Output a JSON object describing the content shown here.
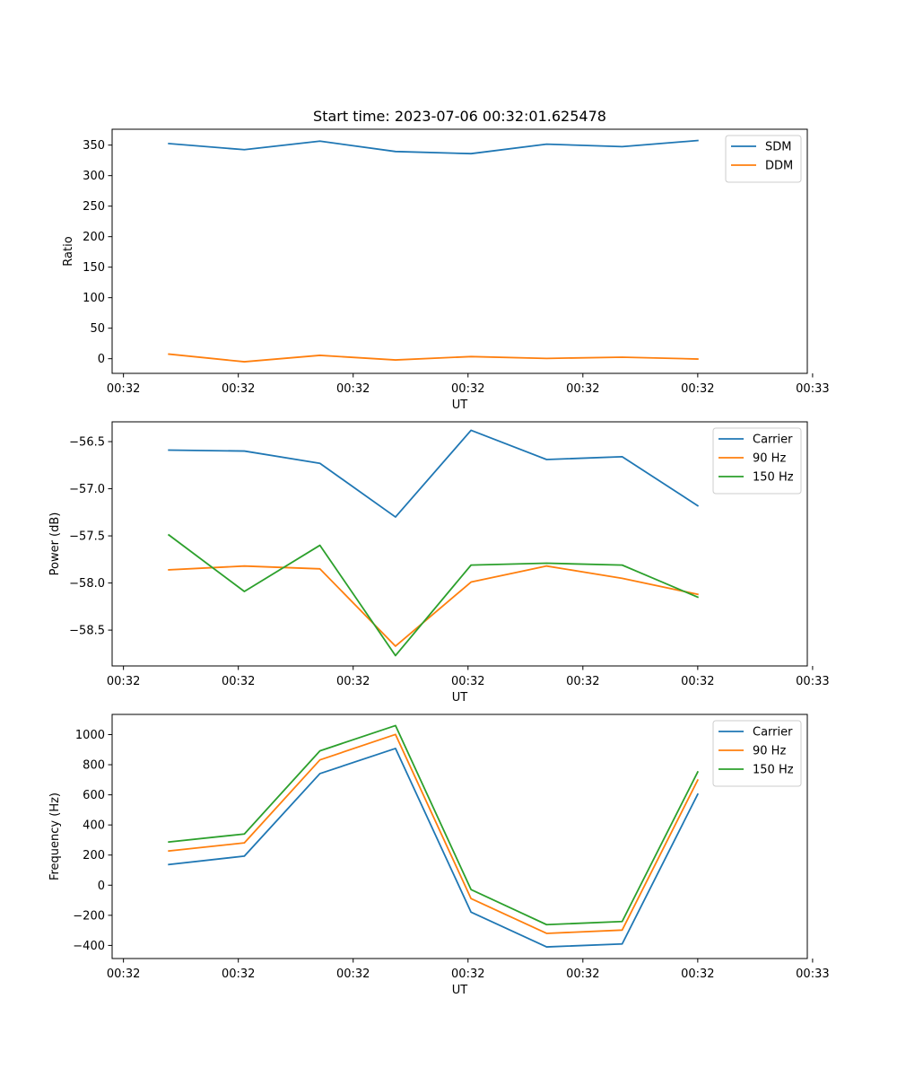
{
  "chart_data": [
    {
      "type": "line",
      "title": "Start time: 2023-07-06 00:32:01.625478",
      "xlabel": "UT",
      "ylabel": "Ratio",
      "x": [
        0,
        1,
        2,
        3,
        4,
        5,
        6,
        7
      ],
      "xlim": [
        -0.75,
        8.45
      ],
      "xticks": [
        -0.6,
        0.92,
        2.44,
        3.96,
        5.48,
        7.0,
        8.52
      ],
      "xtick_labels": [
        "00:32",
        "00:32",
        "00:32",
        "00:32",
        "00:32",
        "00:32",
        "00:33"
      ],
      "ylim": [
        -24,
        376
      ],
      "yticks": [
        0,
        50,
        100,
        150,
        200,
        250,
        300,
        350
      ],
      "ytick_labels": [
        "0",
        "50",
        "100",
        "150",
        "200",
        "250",
        "300",
        "350"
      ],
      "grid": false,
      "legend": "top-right",
      "series": [
        {
          "name": "SDM",
          "color": "#1f77b4",
          "values": [
            352.5,
            342.5,
            356.5,
            339.5,
            336.0,
            351.5,
            347.5,
            357.5
          ]
        },
        {
          "name": "DDM",
          "color": "#ff7f0e",
          "values": [
            7.5,
            -5.0,
            5.5,
            -2.0,
            3.5,
            0.5,
            2.5,
            -0.5
          ]
        }
      ]
    },
    {
      "type": "line",
      "title": "",
      "xlabel": "UT",
      "ylabel": "Power (dB)",
      "x": [
        0,
        1,
        2,
        3,
        4,
        5,
        6,
        7
      ],
      "xlim": [
        -0.75,
        8.45
      ],
      "xticks": [
        -0.6,
        0.92,
        2.44,
        3.96,
        5.48,
        7.0,
        8.52
      ],
      "xtick_labels": [
        "00:32",
        "00:32",
        "00:32",
        "00:32",
        "00:32",
        "00:32",
        "00:33"
      ],
      "ylim": [
        -58.88,
        -56.29
      ],
      "yticks": [
        -58.5,
        -58.0,
        -57.5,
        -57.0,
        -56.5
      ],
      "ytick_labels": [
        "−58.5",
        "−58.0",
        "−57.5",
        "−57.0",
        "−56.5"
      ],
      "grid": false,
      "legend": "top-right",
      "series": [
        {
          "name": "Carrier",
          "color": "#1f77b4",
          "values": [
            -56.59,
            -56.6,
            -56.73,
            -57.3,
            -56.38,
            -56.69,
            -56.66,
            -57.18
          ]
        },
        {
          "name": "90 Hz",
          "color": "#ff7f0e",
          "values": [
            -57.86,
            -57.82,
            -57.85,
            -58.67,
            -57.99,
            -57.82,
            -57.95,
            -58.12
          ]
        },
        {
          "name": "150 Hz",
          "color": "#2ca02c",
          "values": [
            -57.49,
            -58.09,
            -57.6,
            -58.77,
            -57.81,
            -57.79,
            -57.81,
            -58.15
          ]
        }
      ]
    },
    {
      "type": "line",
      "title": "",
      "xlabel": "UT",
      "ylabel": "Frequency (Hz)",
      "x": [
        0,
        1,
        2,
        3,
        4,
        5,
        6,
        7
      ],
      "xlim": [
        -0.75,
        8.45
      ],
      "xticks": [
        -0.6,
        0.92,
        2.44,
        3.96,
        5.48,
        7.0,
        8.52
      ],
      "xtick_labels": [
        "00:32",
        "00:32",
        "00:32",
        "00:32",
        "00:32",
        "00:32",
        "00:33"
      ],
      "ylim": [
        -487,
        1134
      ],
      "yticks": [
        -400,
        -200,
        0,
        200,
        400,
        600,
        800,
        1000
      ],
      "ytick_labels": [
        "−400",
        "−200",
        "0",
        "200",
        "400",
        "600",
        "800",
        "1000"
      ],
      "grid": false,
      "legend": "top-right",
      "series": [
        {
          "name": "Carrier",
          "color": "#1f77b4",
          "values": [
            137,
            193,
            741,
            908,
            -179,
            -410,
            -390,
            604
          ]
        },
        {
          "name": "90 Hz",
          "color": "#ff7f0e",
          "values": [
            227,
            281,
            832,
            1001,
            -89,
            -320,
            -298,
            698
          ]
        },
        {
          "name": "150 Hz",
          "color": "#2ca02c",
          "values": [
            287,
            340,
            892,
            1060,
            -29,
            -262,
            -241,
            752
          ]
        }
      ]
    }
  ]
}
